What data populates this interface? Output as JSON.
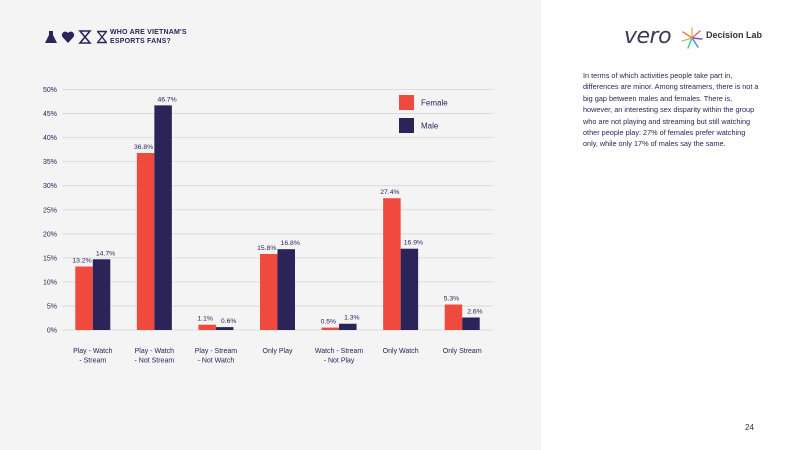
{
  "header": {
    "title": "WHO ARE VIETNAM'S ESPORTS FANS?"
  },
  "logos": {
    "vero": "vero",
    "decision_lab": "Decision Lab"
  },
  "commentary": "In terms of which activities people take part in, differences are minor. Among streamers, there is not a big gap between males and females. There is, however, an interesting sex disparity within the group who are not playing and streaming but still watching other people play: 27% of females prefer watching only, while only 17% of males say the same.",
  "page_number": "24",
  "colors": {
    "female": "#f04a3e",
    "male": "#2a2458",
    "text": "#2a2458",
    "grid": "#d6d6d6"
  },
  "chart_data": {
    "type": "bar",
    "categories": [
      [
        "Play - Watch",
        "- Stream"
      ],
      [
        "Play - Watch",
        "- Not Stream"
      ],
      [
        "Play - Stream",
        "- Not Watch"
      ],
      [
        "Only Play"
      ],
      [
        "Watch - Stream",
        "- Not Play"
      ],
      [
        "Only Watch"
      ],
      [
        "Only Stream"
      ]
    ],
    "series": [
      {
        "name": "Female",
        "values": [
          13.2,
          36.8,
          1.1,
          15.8,
          0.5,
          27.4,
          5.3
        ],
        "labels": [
          "13.2%",
          "36.8%",
          "1.1%",
          "15.8%",
          "0.5%",
          "27.4%",
          "5.3%"
        ]
      },
      {
        "name": "Male",
        "values": [
          14.7,
          46.7,
          0.6,
          16.8,
          1.3,
          16.9,
          2.6
        ],
        "labels": [
          "14.7%",
          "46.7%",
          "0.6%",
          "16.8%",
          "1.3%",
          "16.9%",
          "2.6%"
        ]
      }
    ],
    "yticks": [
      "0%",
      "5%",
      "10%",
      "15%",
      "20%",
      "25%",
      "30%",
      "35%",
      "40%",
      "45%",
      "50%"
    ],
    "ylim": [
      0,
      50
    ],
    "grid": true,
    "legend_position": "top-right"
  }
}
